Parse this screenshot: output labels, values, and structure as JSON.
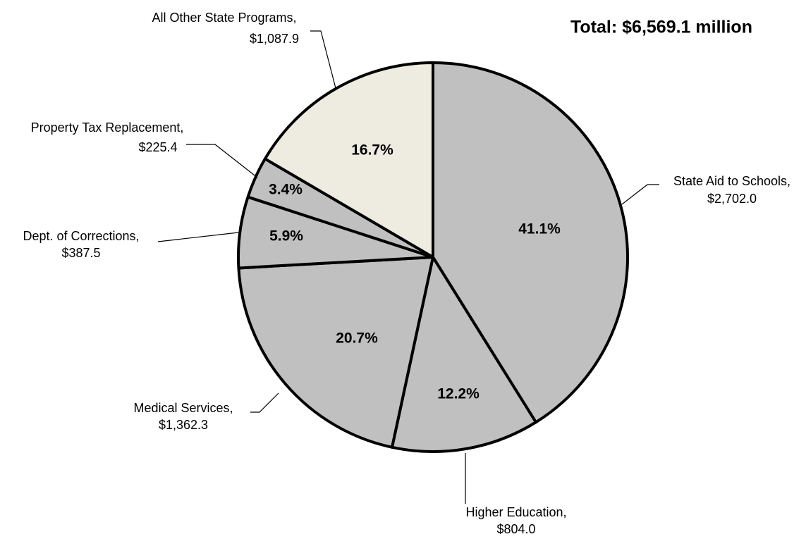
{
  "chart_data": {
    "type": "pie",
    "total_label": "Total:  $6,569.1 million",
    "categories": [
      "State Aid to Schools,",
      "Higher Education,",
      "Medical Services,",
      "Dept. of Corrections,",
      "Property Tax Replacement,",
      "All Other State Programs,"
    ],
    "values": [
      2702.0,
      804.0,
      1362.3,
      387.5,
      225.4,
      1087.9
    ],
    "value_labels": [
      "$2,702.0",
      "$804.0",
      "$1,362.3",
      "$387.5",
      "$225.4",
      "$1,087.9"
    ],
    "percents": [
      41.1,
      12.2,
      20.7,
      5.9,
      3.4,
      16.7
    ],
    "percent_labels": [
      "41.1%",
      "12.2%",
      "20.7%",
      "5.9%",
      "3.4%",
      "16.7%"
    ],
    "colors": [
      "#c0c0c0",
      "#c0c0c0",
      "#c0c0c0",
      "#c0c0c0",
      "#c0c0c0",
      "#eeebe0"
    ]
  }
}
